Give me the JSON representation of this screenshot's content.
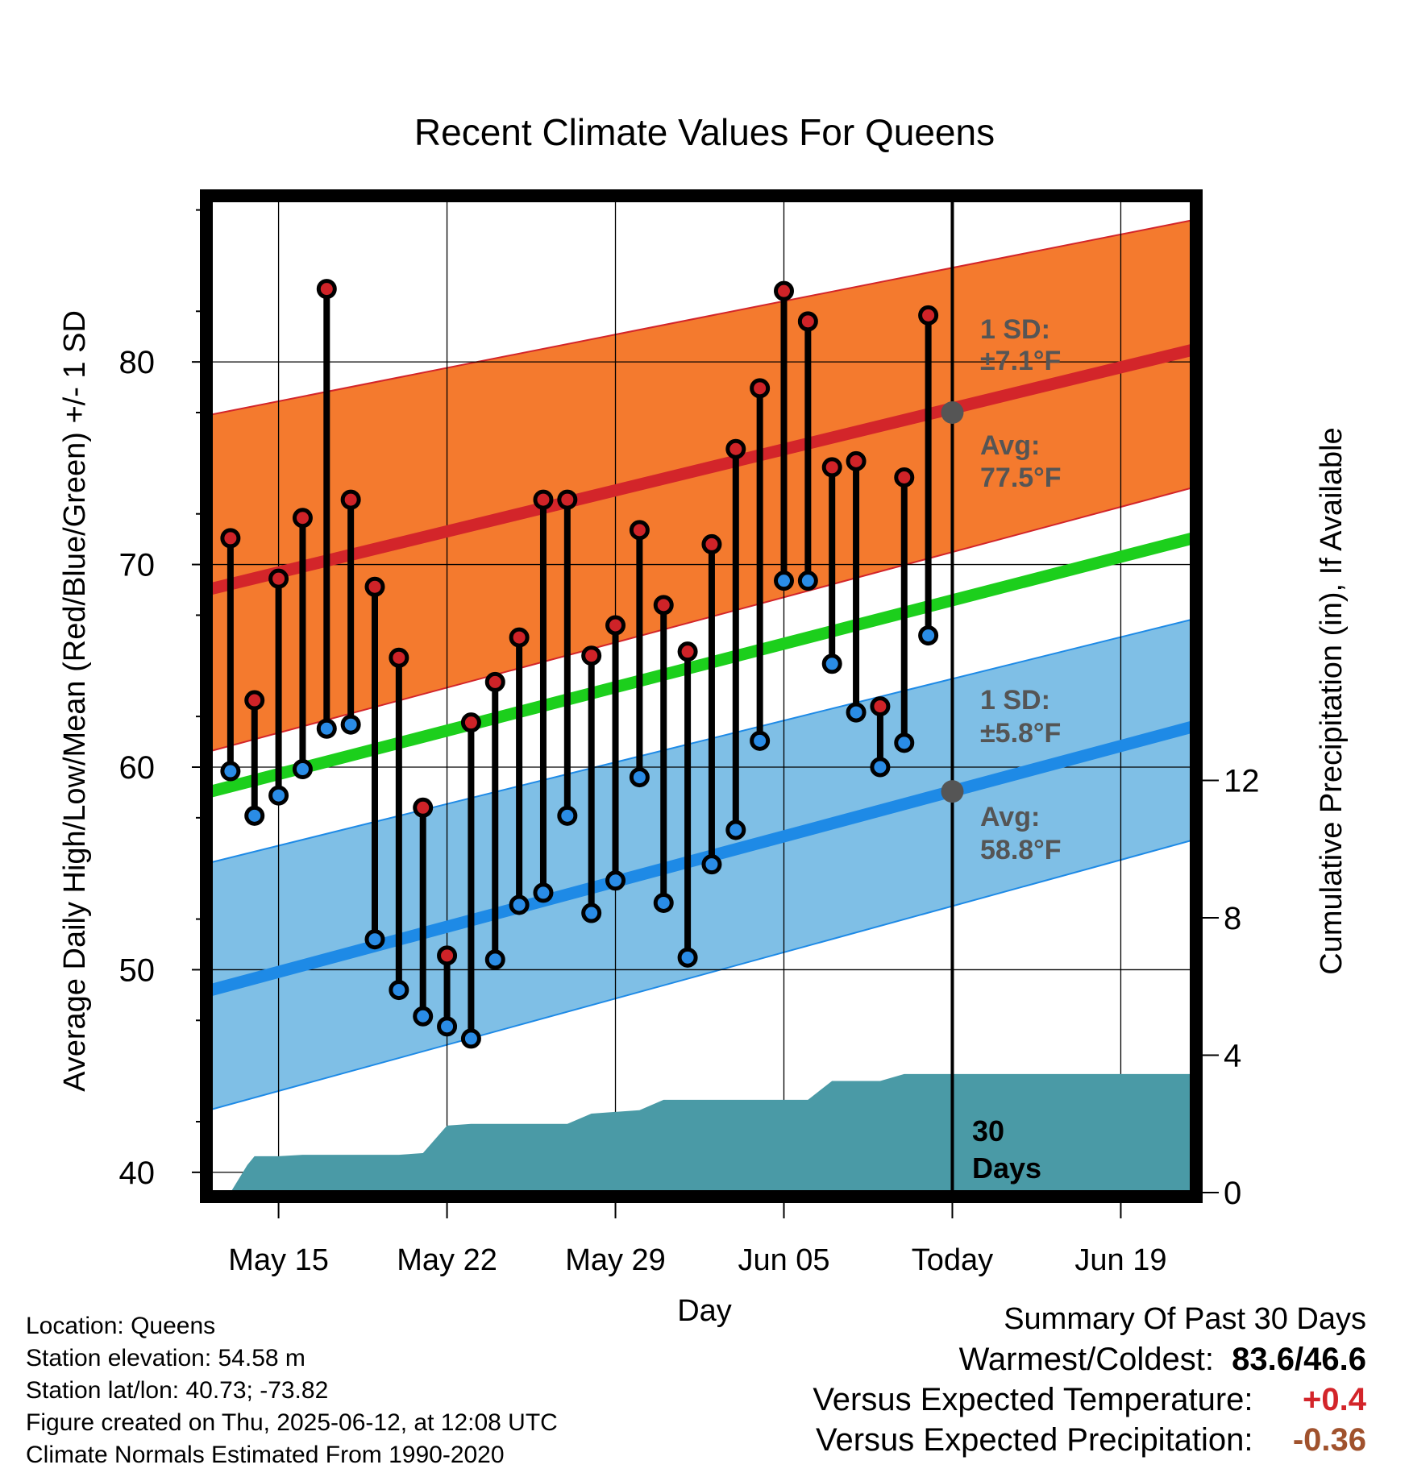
{
  "title": "Recent Climate Values For Queens",
  "ylabel_left": "Average Daily High/Low/Mean (Red/Blue/Green) +/- 1 SD",
  "ylabel_right": "Cumulative Precipitation (in), If Available",
  "xlabel": "Day",
  "annotations": {
    "high_sd_title": "1 SD:",
    "high_sd_value": "±7.1°F",
    "high_avg_title": "Avg:",
    "high_avg_value": "77.5°F",
    "low_sd_title": "1 SD:",
    "low_sd_value": "±5.8°F",
    "low_avg_title": "Avg:",
    "low_avg_value": "58.8°F",
    "window_days_line1": "30",
    "window_days_line2": "Days"
  },
  "footer": {
    "location": "Location: Queens",
    "elevation": "Station elevation: 54.58 m",
    "latlon": "Station lat/lon: 40.73; -73.82",
    "created": "Figure created on Thu, 2025-06-12, at 12:08 UTC",
    "normals": "Climate Normals Estimated From 1990-2020"
  },
  "summary": {
    "heading": "Summary Of Past 30 Days",
    "warmest_coldest_label": "Warmest/Coldest:",
    "warmest_coldest_value": "83.6/46.6",
    "temp_label": "Versus Expected Temperature:",
    "temp_value": "+0.4",
    "precip_label": "Versus Expected Precipitation:",
    "precip_value": "-0.36"
  },
  "colors": {
    "high_band": "#f47a2e",
    "high_mean": "#d3252a",
    "low_band": "#7fbfe6",
    "low_mean": "#1e8ae6",
    "mean_line": "#1ccf1c",
    "precip": "#4a9aa6",
    "high_dot": "#cf2328",
    "low_dot": "#2a8ce6",
    "annotation": "#555555",
    "temp_departure": "#d3252a",
    "precip_departure": "#a0522d"
  },
  "chart_data": {
    "type": "line",
    "x_axis": {
      "ticks": [
        {
          "day": 15,
          "label": "May 15"
        },
        {
          "day": 22,
          "label": "May 22"
        },
        {
          "day": 29,
          "label": "May 29"
        },
        {
          "day": 36,
          "label": "Jun 05"
        },
        {
          "day": 43,
          "label": "Today"
        },
        {
          "day": 50,
          "label": "Jun 19"
        }
      ],
      "range_day": [
        12.2,
        53
      ],
      "today_day": 43
    },
    "y_left": {
      "ticks": [
        40,
        50,
        60,
        70,
        80
      ],
      "range": [
        39,
        88
      ]
    },
    "y_right": {
      "ticks": [
        0,
        4,
        8,
        12
      ],
      "range": [
        0,
        28.9
      ]
    },
    "daily": {
      "days": [
        13,
        14,
        15,
        16,
        17,
        18,
        19,
        20,
        21,
        22,
        23,
        24,
        25,
        26,
        27,
        28,
        29,
        30,
        31,
        32,
        33,
        34,
        35,
        36,
        37,
        38,
        39,
        40,
        41,
        42
      ],
      "high": [
        71.3,
        63.3,
        69.3,
        72.3,
        83.6,
        73.2,
        68.9,
        65.4,
        58.0,
        50.7,
        62.2,
        64.2,
        66.4,
        73.2,
        73.2,
        65.5,
        67.0,
        71.7,
        68.0,
        65.7,
        71.0,
        75.7,
        78.7,
        83.5,
        82.0,
        74.8,
        75.1,
        63.0,
        74.3,
        82.3
      ],
      "low": [
        59.8,
        57.6,
        58.6,
        59.9,
        61.9,
        62.1,
        51.5,
        49.0,
        47.7,
        47.2,
        46.6,
        50.5,
        53.2,
        53.8,
        57.6,
        52.8,
        54.4,
        59.5,
        53.3,
        50.6,
        55.2,
        56.9,
        61.3,
        69.2,
        69.2,
        65.1,
        62.7,
        60.0,
        61.2,
        66.5
      ]
    },
    "normals": {
      "days": [
        12.2,
        53
      ],
      "high_mean": [
        68.8,
        80.6
      ],
      "high_upper": [
        77.4,
        87.0
      ],
      "high_lower": [
        60.8,
        73.8
      ],
      "low_mean": [
        49.0,
        62.0
      ],
      "low_upper": [
        55.3,
        67.3
      ],
      "low_lower": [
        43.1,
        56.4
      ],
      "mean": [
        58.8,
        71.3
      ]
    },
    "today_markers": {
      "high_avg": 77.5,
      "low_avg": 58.8
    },
    "precipitation": {
      "days": [
        12.2,
        13,
        13.7,
        14,
        15,
        16,
        17,
        18,
        19,
        20,
        21,
        22,
        23,
        24,
        25,
        26,
        27,
        28,
        29,
        30,
        31,
        32,
        33,
        34,
        35,
        36,
        37,
        38,
        39,
        40,
        41,
        42,
        43,
        53
      ],
      "values": [
        0,
        0,
        0.8,
        1.06,
        1.06,
        1.1,
        1.1,
        1.1,
        1.1,
        1.1,
        1.15,
        1.95,
        2.0,
        2.0,
        2.0,
        2.0,
        2.0,
        2.3,
        2.35,
        2.4,
        2.7,
        2.7,
        2.7,
        2.7,
        2.7,
        2.7,
        2.7,
        3.25,
        3.25,
        3.25,
        3.45,
        3.45,
        3.45,
        3.45
      ]
    }
  }
}
